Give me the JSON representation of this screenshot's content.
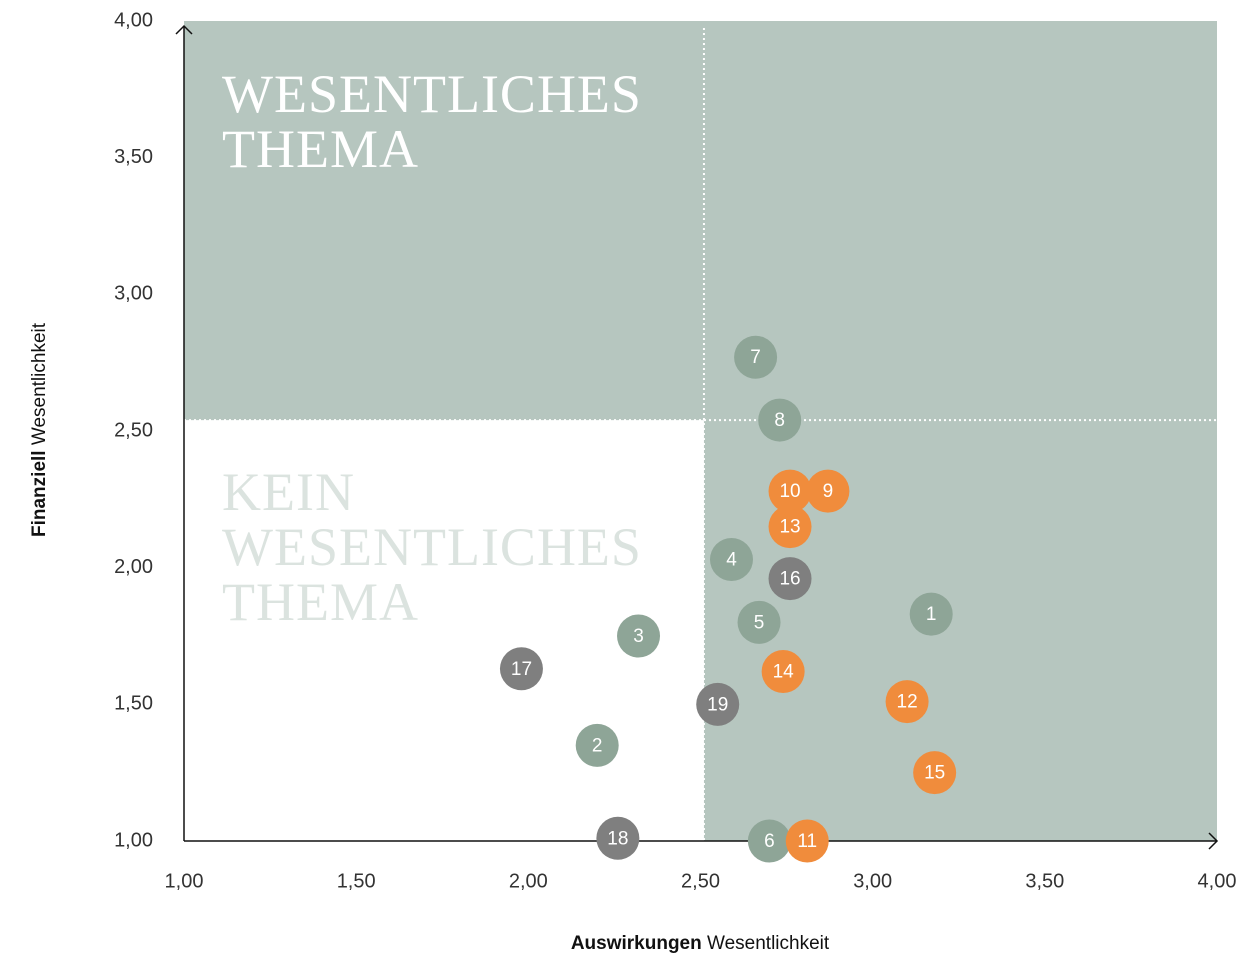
{
  "chart_data": {
    "type": "scatter",
    "x_label": {
      "bold": "Auswirkungen",
      "rest": "Wesentlichkeit"
    },
    "y_label": {
      "bold": "Finanziell",
      "rest": "Wesentlichkeit"
    },
    "xlim": [
      1,
      4
    ],
    "ylim": [
      1,
      4
    ],
    "xticks": [
      {
        "value": 1,
        "label": "1,00"
      },
      {
        "value": 1.5,
        "label": "1,50"
      },
      {
        "value": 2,
        "label": "2,00"
      },
      {
        "value": 2.5,
        "label": "2,50"
      },
      {
        "value": 3,
        "label": "3,00"
      },
      {
        "value": 3.5,
        "label": "3,50"
      },
      {
        "value": 4,
        "label": "4,00"
      }
    ],
    "yticks": [
      {
        "value": 1,
        "label": "1,00"
      },
      {
        "value": 1.5,
        "label": "1,50"
      },
      {
        "value": 2,
        "label": "2,00"
      },
      {
        "value": 2.5,
        "label": "2,50"
      },
      {
        "value": 3,
        "label": "3,00"
      },
      {
        "value": 3.5,
        "label": "3,50"
      },
      {
        "value": 4,
        "label": "4,00"
      }
    ],
    "thresholds": {
      "x": 2.51,
      "y": 2.54
    },
    "region_color": "#b6c6bf",
    "annotations": [
      {
        "lines": [
          "WESENTLICHES",
          "THEMA"
        ],
        "color": "#ffffff"
      },
      {
        "lines": [
          "KEIN",
          "WESENTLICHES",
          "THEMA"
        ],
        "color": "#dbe3df"
      }
    ],
    "labels": [
      1,
      2,
      3,
      4,
      5,
      6,
      7,
      8,
      9,
      10,
      11,
      12,
      13,
      14,
      15,
      16,
      17,
      18,
      19
    ],
    "x": [
      3.17,
      2.2,
      2.32,
      2.59,
      2.67,
      2.7,
      2.66,
      2.73,
      2.87,
      2.76,
      2.81,
      3.1,
      2.76,
      2.74,
      3.18,
      2.76,
      1.98,
      2.26,
      2.55
    ],
    "y": [
      1.83,
      1.35,
      1.75,
      2.03,
      1.8,
      1.0,
      2.77,
      2.54,
      2.28,
      2.28,
      1.0,
      1.51,
      2.15,
      1.62,
      1.25,
      1.96,
      1.63,
      1.01,
      1.5
    ],
    "colors": [
      "#8ea597",
      "#8ea597",
      "#8ea597",
      "#8ea597",
      "#8ea597",
      "#8ea597",
      "#8ea597",
      "#8ea597",
      "#f08c3c",
      "#f08c3c",
      "#f08c3c",
      "#f08c3c",
      "#f08c3c",
      "#f08c3c",
      "#f08c3c",
      "#7f7f7f",
      "#7f7f7f",
      "#7f7f7f",
      "#7f7f7f"
    ]
  }
}
